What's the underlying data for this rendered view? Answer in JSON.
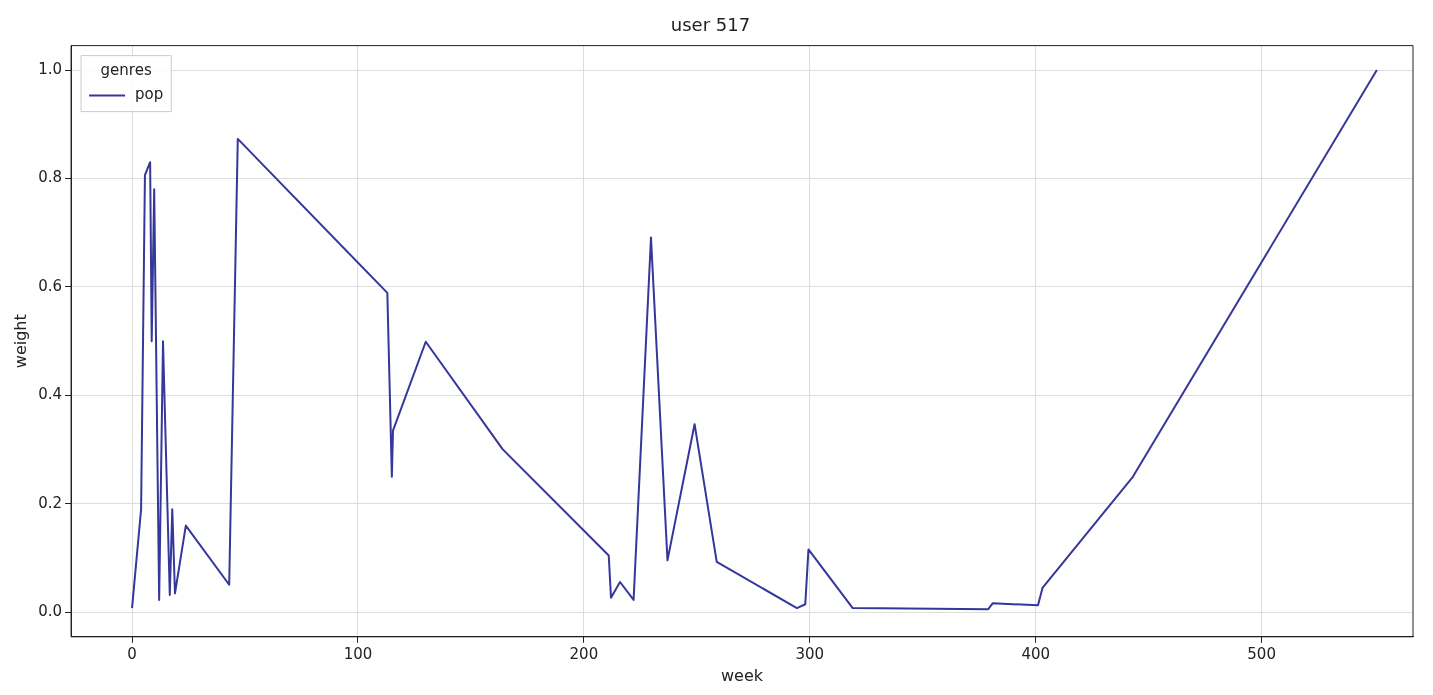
{
  "chart_data": {
    "type": "line",
    "title": "user 517",
    "xlabel": "week",
    "ylabel": "weight",
    "legend_title": "genres",
    "xlim": [
      -27,
      567
    ],
    "ylim": [
      -0.045,
      1.045
    ],
    "xticks": [
      0,
      100,
      200,
      300,
      400,
      500
    ],
    "yticks": [
      {
        "value": 0,
        "label": "0.0"
      },
      0.2,
      0.4,
      0.6,
      0.8,
      {
        "value": 1,
        "label": "1.0"
      }
    ],
    "grid": true,
    "legend": "top left",
    "line_style": "solid",
    "marker": "none",
    "series": [
      {
        "name": "pop",
        "color": "#35379a",
        "x": [
          0,
          4,
          5.7,
          8,
          8.7,
          9.8,
          12,
          13.7,
          16.7,
          17.8,
          19,
          23.8,
          43,
          46.8,
          113,
          115,
          115.5,
          130,
          164,
          211,
          212,
          216,
          222,
          229.7,
          237,
          249,
          258.8,
          294.3,
          298,
          299.4,
          319,
          379,
          381,
          401,
          403,
          443,
          551
        ],
        "values": [
          0.008,
          0.19,
          0.806,
          0.83,
          0.5,
          0.78,
          0.023,
          0.5,
          0.032,
          0.19,
          0.035,
          0.16,
          0.051,
          0.873,
          0.589,
          0.25,
          0.335,
          0.499,
          0.301,
          0.105,
          0.027,
          0.056,
          0.023,
          0.691,
          0.096,
          0.347,
          0.093,
          0.008,
          0.015,
          0.116,
          0.008,
          0.006,
          0.017,
          0.013,
          0.045,
          0.25,
          1.0
        ]
      }
    ]
  }
}
